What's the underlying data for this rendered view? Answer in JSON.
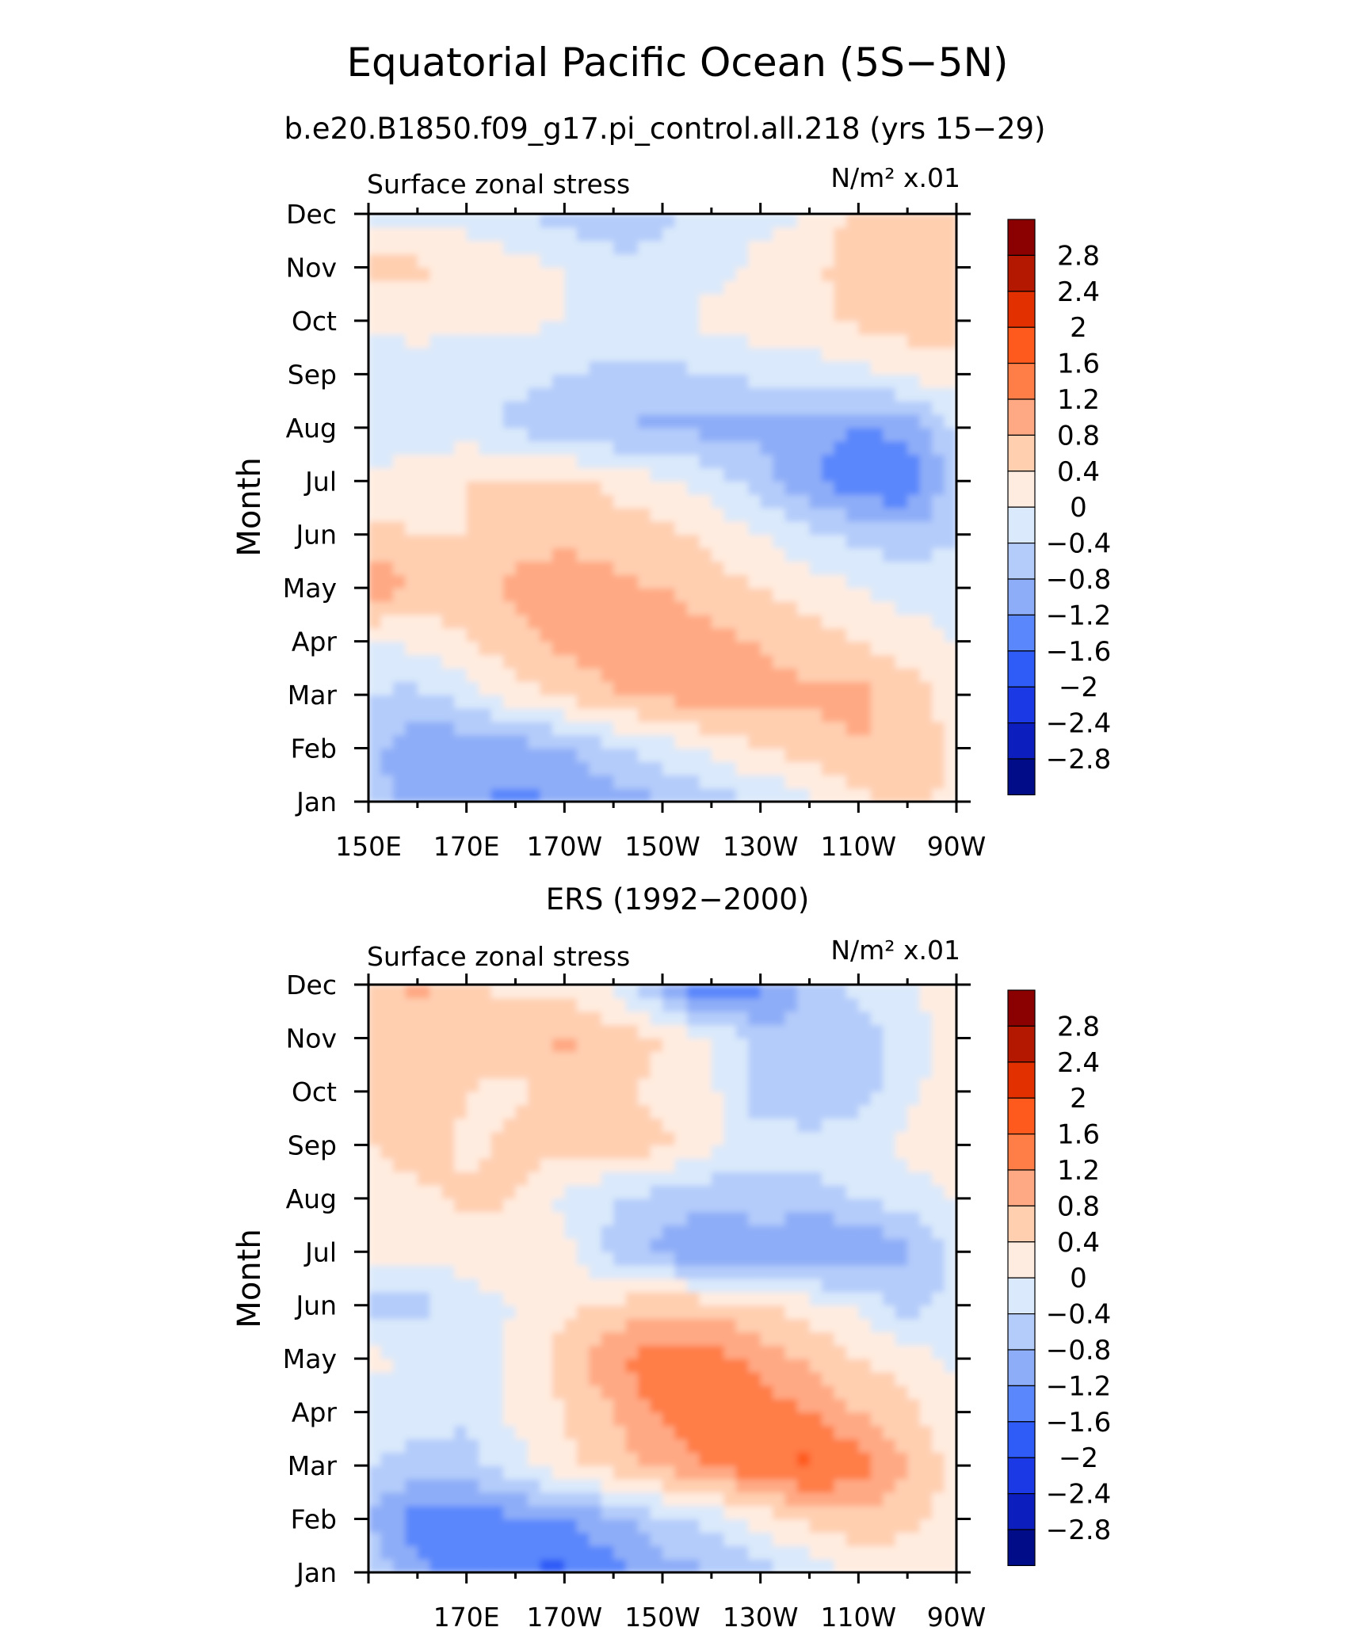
{
  "figure": {
    "title": "Equatorial Pacific Ocean (5S−5N)",
    "subtitle": "b.e20.B1850.f09_g17.pi_control.all.218 (yrs 15−29)"
  },
  "chart_data": [
    {
      "type": "heatmap",
      "panel_title": "",
      "left_label": "Surface zonal stress",
      "right_label": "N/m² x.01",
      "ylabel": "Month",
      "xlabel": "",
      "x_tick_labels": [
        "150E",
        "170E",
        "170W",
        "150W",
        "130W",
        "110W",
        "90W"
      ],
      "y_tick_labels": [
        "Jan",
        "Feb",
        "Mar",
        "Apr",
        "May",
        "Jun",
        "Jul",
        "Aug",
        "Sep",
        "Oct",
        "Nov",
        "Dec"
      ],
      "x_centers": [
        "150E",
        "160E",
        "170E",
        "180",
        "170W",
        "160W",
        "150W",
        "140W",
        "130W",
        "120W",
        "110W",
        "100W",
        "90W"
      ],
      "x_range_deg_east": [
        150,
        270
      ],
      "levels": [
        -2.8,
        -2.4,
        -2.0,
        -1.6,
        -1.2,
        -0.8,
        -0.4,
        0,
        0.4,
        0.8,
        1.2,
        1.6,
        2.0,
        2.4,
        2.8
      ],
      "values": [
        [
          -0.6,
          -1.0,
          -1.1,
          -1.3,
          -1.2,
          -1.0,
          -0.8,
          -0.6,
          -0.4,
          -0.1,
          0.3,
          0.5,
          0.3
        ],
        [
          -0.7,
          -1.1,
          -1.1,
          -1.0,
          -0.8,
          -0.5,
          -0.2,
          0.1,
          0.4,
          0.6,
          0.8,
          0.7,
          0.3
        ],
        [
          -0.4,
          -0.5,
          -0.2,
          0.2,
          0.5,
          0.8,
          0.9,
          1.0,
          0.9,
          0.9,
          0.9,
          0.6,
          0.2
        ],
        [
          -0.1,
          0.1,
          0.4,
          0.7,
          0.9,
          1.0,
          1.0,
          0.9,
          0.8,
          0.6,
          0.4,
          0.2,
          0.0
        ],
        [
          1.3,
          0.6,
          0.6,
          0.9,
          1.0,
          0.9,
          0.8,
          0.6,
          0.4,
          0.2,
          0.0,
          -0.2,
          -0.2
        ],
        [
          0.5,
          0.4,
          0.4,
          0.6,
          0.7,
          0.6,
          0.5,
          0.3,
          0.0,
          -0.3,
          -0.5,
          -0.7,
          -0.4
        ],
        [
          0.1,
          0.2,
          0.4,
          0.5,
          0.5,
          0.3,
          0.1,
          -0.2,
          -0.6,
          -1.1,
          -1.5,
          -1.6,
          -0.5
        ],
        [
          -0.2,
          -0.3,
          -0.2,
          -0.5,
          -0.7,
          -0.8,
          -0.9,
          -0.9,
          -0.9,
          -1.1,
          -1.2,
          -1.1,
          -0.4
        ],
        [
          -0.4,
          -0.3,
          -0.3,
          -0.3,
          -0.4,
          -0.5,
          -0.5,
          -0.4,
          -0.3,
          -0.3,
          -0.1,
          0.1,
          0.3
        ],
        [
          0.2,
          0.2,
          0.1,
          0.1,
          0.0,
          -0.1,
          -0.1,
          0.1,
          0.2,
          0.3,
          0.5,
          0.6,
          0.6
        ],
        [
          0.5,
          0.5,
          0.2,
          0.1,
          0.0,
          -0.2,
          -0.3,
          -0.1,
          0.1,
          0.3,
          0.6,
          0.6,
          0.6
        ],
        [
          -0.1,
          -0.2,
          -0.1,
          -0.3,
          -0.6,
          -0.8,
          -0.5,
          -0.3,
          -0.1,
          0.0,
          0.6,
          0.7,
          0.6
        ]
      ]
    },
    {
      "type": "heatmap",
      "panel_title": "ERS (1992−2000)",
      "left_label": "Surface zonal stress",
      "right_label": "N/m² x.01",
      "ylabel": "Month",
      "xlabel": "",
      "x_tick_labels": [
        "170E",
        "170W",
        "150W",
        "130W",
        "110W",
        "90W"
      ],
      "y_tick_labels": [
        "Jan",
        "Feb",
        "Mar",
        "Apr",
        "May",
        "Jun",
        "Jul",
        "Aug",
        "Sep",
        "Oct",
        "Nov",
        "Dec"
      ],
      "x_centers": [
        "150E",
        "160E",
        "170E",
        "180",
        "170W",
        "160W",
        "150W",
        "140W",
        "130W",
        "120W",
        "110W",
        "100W",
        "90W"
      ],
      "x_range_deg_east": [
        150,
        270
      ],
      "levels": [
        -2.8,
        -2.4,
        -2.0,
        -1.6,
        -1.2,
        -0.8,
        -0.4,
        0,
        0.4,
        0.8,
        1.2,
        1.6,
        2.0,
        2.4,
        2.8
      ],
      "values": [
        [
          -0.5,
          -1.1,
          -1.4,
          -1.6,
          -1.7,
          -1.4,
          -1.0,
          -0.8,
          -0.6,
          -0.3,
          0.1,
          0.2,
          0.1
        ],
        [
          -0.8,
          -1.4,
          -1.5,
          -1.3,
          -1.2,
          -0.9,
          -0.5,
          -0.3,
          0.2,
          0.5,
          0.7,
          0.5,
          0.2
        ],
        [
          -0.4,
          -0.6,
          -0.5,
          -0.2,
          0.3,
          0.6,
          0.9,
          1.2,
          1.5,
          1.7,
          1.4,
          0.8,
          0.3
        ],
        [
          -0.2,
          -0.1,
          -0.4,
          0.1,
          0.4,
          0.8,
          1.3,
          1.6,
          1.4,
          1.2,
          0.8,
          0.5,
          0.1
        ],
        [
          0.1,
          -0.1,
          -0.2,
          0.1,
          0.6,
          1.1,
          1.5,
          1.4,
          1.1,
          0.7,
          0.4,
          0.2,
          -0.1
        ],
        [
          -0.5,
          -0.6,
          -0.1,
          0.0,
          0.3,
          0.5,
          0.7,
          0.6,
          0.4,
          0.2,
          -0.1,
          -0.6,
          -0.2
        ],
        [
          0.1,
          0.2,
          0.1,
          0.3,
          0.1,
          -0.5,
          -0.9,
          -1.3,
          -1.0,
          -1.3,
          -1.2,
          -0.9,
          -0.3
        ],
        [
          0.2,
          0.3,
          0.5,
          0.4,
          -0.1,
          -0.4,
          -0.6,
          -0.7,
          -0.6,
          -0.6,
          -0.4,
          -0.2,
          0.0
        ],
        [
          0.4,
          0.6,
          0.3,
          0.5,
          0.6,
          0.6,
          0.5,
          0.1,
          -0.1,
          -0.2,
          -0.1,
          0.1,
          0.2
        ],
        [
          0.5,
          0.7,
          0.4,
          0.3,
          0.6,
          0.5,
          0.3,
          0.1,
          -0.7,
          -0.8,
          -0.6,
          -0.1,
          0.2
        ],
        [
          0.4,
          0.6,
          0.5,
          0.6,
          0.9,
          0.6,
          0.4,
          0.0,
          -0.6,
          -0.8,
          -0.6,
          -0.2,
          0.2
        ],
        [
          0.6,
          0.9,
          0.5,
          0.3,
          0.2,
          -0.1,
          -0.9,
          -1.7,
          -1.3,
          -0.7,
          -0.3,
          0.0,
          0.1
        ]
      ]
    }
  ],
  "colorbar": {
    "labels": [
      "2.8",
      "2.4",
      "2",
      "1.6",
      "1.2",
      "0.8",
      "0.4",
      "0",
      "−0.4",
      "−0.8",
      "−1.2",
      "−1.6",
      "−2",
      "−2.4",
      "−2.8"
    ],
    "colors_top_to_bottom": [
      "#8b0000",
      "#b41800",
      "#e33000",
      "#ff5a1e",
      "#ff7d46",
      "#ffa984",
      "#ffcfb0",
      "#ffece0",
      "#dae9fb",
      "#b4ccfa",
      "#8eadf8",
      "#5a87fc",
      "#2f5cf7",
      "#1c39e6",
      "#0d1ebe",
      "#000c88"
    ]
  }
}
